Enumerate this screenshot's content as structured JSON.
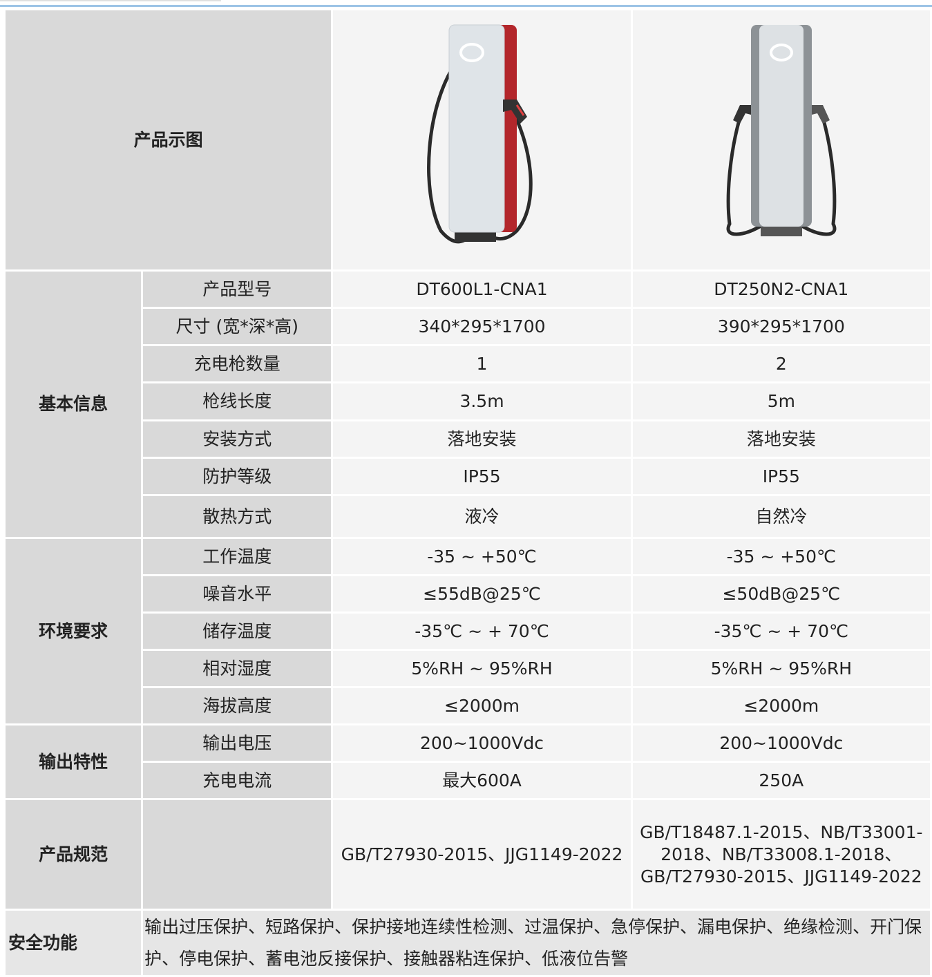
{
  "image_row_label": "产品示图",
  "groups": [
    {
      "label": "基本信息",
      "rows": [
        {
          "label": "产品型号",
          "values": [
            "DT600L1-CNA1",
            "DT250N2-CNA1"
          ]
        },
        {
          "label": "尺寸 (宽*深*高)",
          "values": [
            "340*295*1700",
            "390*295*1700"
          ]
        },
        {
          "label": "充电枪数量",
          "values": [
            "1",
            "2"
          ]
        },
        {
          "label": "枪线长度",
          "values": [
            "3.5m",
            "5m"
          ]
        },
        {
          "label": "安装方式",
          "values": [
            "落地安装",
            "落地安装"
          ]
        },
        {
          "label": "防护等级",
          "values": [
            "IP55",
            "IP55"
          ]
        },
        {
          "label": "散热方式",
          "values": [
            "液冷",
            "自然冷"
          ]
        }
      ]
    },
    {
      "label": "环境要求",
      "rows": [
        {
          "label": "工作温度",
          "values": [
            "-35 ~ +50℃",
            "-35 ~ +50℃"
          ]
        },
        {
          "label": "噪音水平",
          "values": [
            "≤55dB@25℃",
            "≤50dB@25℃"
          ]
        },
        {
          "label": "储存温度",
          "values": [
            "-35℃ ~ + 70℃",
            "-35℃ ~ + 70℃"
          ]
        },
        {
          "label": "相对湿度",
          "values": [
            "5%RH ~ 95%RH",
            "5%RH ~ 95%RH"
          ]
        },
        {
          "label": "海拔高度",
          "values": [
            "≤2000m",
            "≤2000m"
          ]
        }
      ]
    },
    {
      "label": "输出特性",
      "rows": [
        {
          "label": "输出电压",
          "values": [
            "200~1000Vdc",
            "200~1000Vdc"
          ]
        },
        {
          "label": "充电电流",
          "values": [
            "最大600A",
            "250A"
          ]
        }
      ]
    },
    {
      "label": "产品规范",
      "rows": [
        {
          "values": [
            "GB/T27930-2015、JJG1149-2022",
            "GB/T18487.1-2015、NB/T33001-2018、NB/T33008.1-2018、GB/T27930-2015、JJG1149-2022"
          ]
        }
      ]
    }
  ],
  "safety": {
    "label": "安全功能",
    "text": "输出过压保护、短路保护、保护接地连续性检测、过温保护、急停保护、漏电保护、绝缘检测、开门保护、停电保护、蓄电池反接保护、接触器粘连保护、低液位告警"
  }
}
